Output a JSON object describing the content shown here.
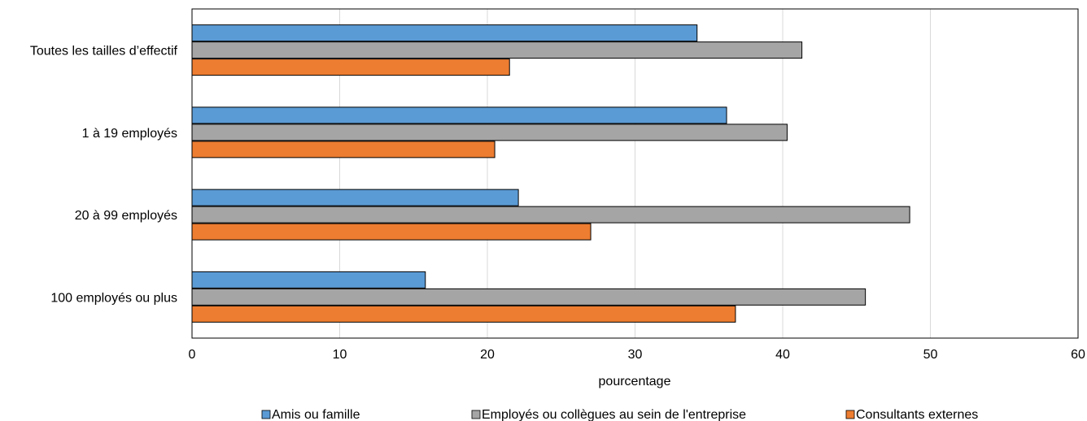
{
  "chart_data": {
    "type": "bar",
    "orientation": "horizontal",
    "categories": [
      "Toutes les tailles d’effectif",
      "1 à 19 employés",
      "20 à 99 employés",
      "100 employés ou plus"
    ],
    "series": [
      {
        "name": "Amis ou famille",
        "color": "#5b9bd5",
        "values": [
          34.2,
          36.2,
          22.1,
          15.8
        ]
      },
      {
        "name": "Employés ou collègues au sein de l'entreprise",
        "color": "#a5a5a5",
        "values": [
          41.3,
          40.3,
          48.6,
          45.6
        ]
      },
      {
        "name": "Consultants externes",
        "color": "#ed7d31",
        "values": [
          21.5,
          20.5,
          27.0,
          36.8
        ]
      }
    ],
    "xlabel": "pourcentage",
    "ylabel": "",
    "xlim": [
      0,
      60
    ],
    "xticks": [
      0,
      10,
      20,
      30,
      40,
      50,
      60
    ],
    "grid": true,
    "legend_position": "bottom"
  }
}
